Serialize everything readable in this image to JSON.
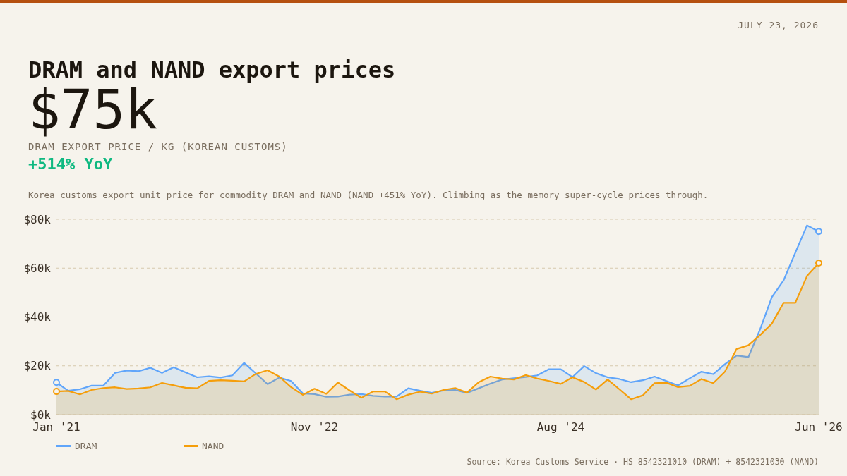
{
  "chart_data": {
    "type": "area",
    "title": "DRAM and NAND export prices",
    "subtitle": "Korea customs export unit price for commodity DRAM and NAND (NAND +451% YoY). Climbing as the memory super-cycle prices through.",
    "annotations": [
      "JULY 23, 2026",
      "$75k",
      "DRAM EXPORT PRICE / KG (KOREAN CUSTOMS)",
      "+514% YoY",
      "Source: Korea Customs Service · HS 8542321010 (DRAM) + 8542321030 (NAND)"
    ],
    "x": [
      "2021-01",
      "2021-02",
      "2021-03",
      "2021-04",
      "2021-05",
      "2021-06",
      "2021-07",
      "2021-08",
      "2021-09",
      "2021-10",
      "2021-11",
      "2021-12",
      "2022-01",
      "2022-02",
      "2022-03",
      "2022-04",
      "2022-05",
      "2022-06",
      "2022-07",
      "2022-08",
      "2022-09",
      "2022-10",
      "2022-11",
      "2022-12",
      "2023-01",
      "2023-02",
      "2023-03",
      "2023-04",
      "2023-05",
      "2023-06",
      "2023-07",
      "2023-08",
      "2023-09",
      "2023-10",
      "2023-11",
      "2023-12",
      "2024-01",
      "2024-02",
      "2024-03",
      "2024-04",
      "2024-05",
      "2024-06",
      "2024-07",
      "2024-08",
      "2024-09",
      "2024-10",
      "2024-11",
      "2024-12",
      "2025-01",
      "2025-02",
      "2025-03",
      "2025-04",
      "2025-05",
      "2025-06",
      "2025-07",
      "2025-08",
      "2025-09",
      "2025-10",
      "2025-11",
      "2025-12",
      "2026-01",
      "2026-02",
      "2026-03",
      "2026-04",
      "2026-05",
      "2026-06"
    ],
    "series": [
      {
        "name": "DRAM",
        "color": "#60a5fa",
        "values": [
          13.2,
          9.8,
          10.4,
          11.9,
          11.9,
          17.1,
          18.1,
          17.8,
          19.2,
          17.1,
          19.4,
          17.3,
          15.3,
          15.7,
          15.2,
          16.1,
          21.2,
          16.9,
          12.5,
          15.2,
          13.8,
          8.7,
          8.4,
          7.3,
          7.4,
          8.2,
          8.4,
          7.7,
          7.4,
          7.4,
          10.8,
          9.8,
          8.9,
          9.9,
          10.1,
          8.9,
          10.8,
          12.7,
          14.4,
          14.9,
          15.4,
          16.1,
          18.6,
          18.6,
          15.4,
          19.9,
          17.0,
          15.3,
          14.6,
          13.3,
          14.1,
          15.6,
          13.8,
          12.0,
          14.9,
          17.6,
          16.6,
          20.7,
          24.2,
          23.6,
          35,
          48.1,
          55.0,
          66.3,
          77.5,
          75
        ]
      },
      {
        "name": "NAND",
        "color": "#f59e0b",
        "values": [
          9.5,
          9.7,
          8.3,
          10.1,
          10.9,
          11.2,
          10.5,
          10.7,
          11.2,
          13.0,
          12.0,
          11.0,
          10.8,
          13.8,
          14.1,
          13.9,
          13.6,
          16.7,
          18.2,
          15.6,
          11.3,
          8.1,
          10.6,
          8.5,
          13.2,
          9.9,
          6.9,
          9.5,
          9.5,
          6.3,
          8.2,
          9.4,
          8.6,
          10.1,
          10.9,
          9.0,
          13.3,
          15.6,
          14.8,
          14.4,
          16.2,
          14.8,
          13.8,
          12.6,
          15.3,
          13.4,
          10.3,
          14.4,
          10.4,
          6.3,
          7.9,
          12.9,
          13.1,
          11.3,
          11.8,
          14.6,
          12.9,
          17.6,
          26.9,
          28.4,
          32.6,
          37.3,
          45.8,
          45.8,
          56.8,
          62.1
        ]
      }
    ],
    "xlim": [
      "2021-01",
      "2026-06"
    ],
    "xticks": [
      {
        "value": "2021-01",
        "label": "Jan '21"
      },
      {
        "value": "2022-11",
        "label": "Nov '22"
      },
      {
        "value": "2024-08",
        "label": "Aug '24"
      },
      {
        "value": "2026-06",
        "label": "Jun '26"
      }
    ],
    "ylim": [
      0,
      80
    ],
    "yticks": [
      {
        "value": 0,
        "label": "$0k"
      },
      {
        "value": 20,
        "label": "$20k"
      },
      {
        "value": 40,
        "label": "$40k"
      },
      {
        "value": 60,
        "label": "$60k"
      },
      {
        "value": 80,
        "label": "$80k"
      }
    ],
    "grid": "y",
    "legend": "bottom left",
    "line_style": "solid"
  }
}
